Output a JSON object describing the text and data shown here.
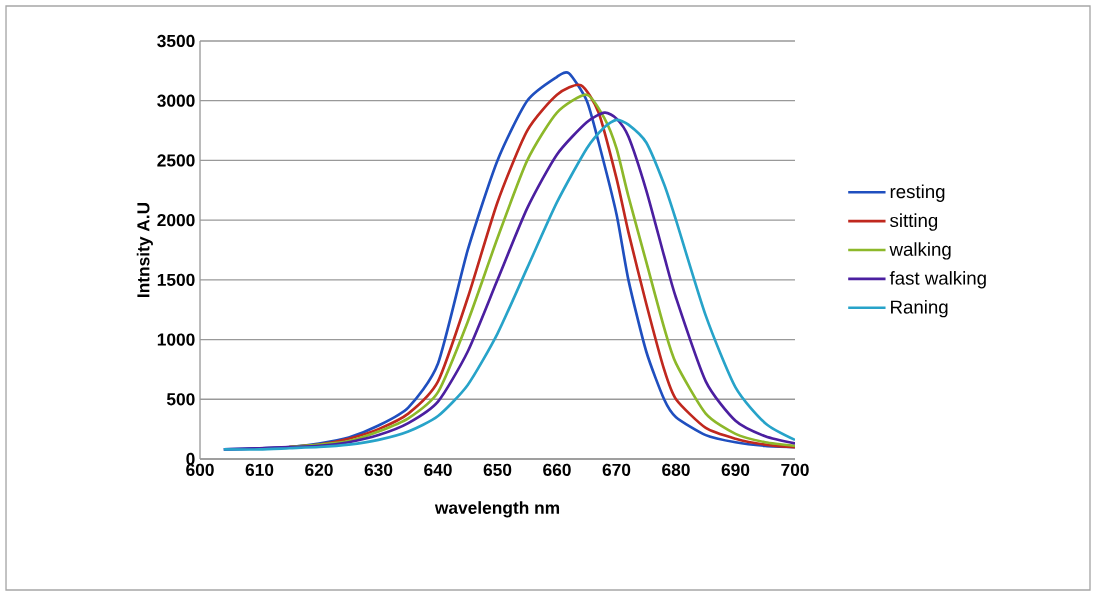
{
  "chart_data": {
    "type": "line",
    "xlabel": "wavelength nm",
    "ylabel": "Intnsity  A.U",
    "xlim": [
      600,
      700
    ],
    "xticks": [
      600,
      610,
      620,
      630,
      640,
      650,
      660,
      670,
      680,
      690,
      700
    ],
    "ylim": [
      0,
      3500
    ],
    "yticks": [
      0,
      500,
      1000,
      1500,
      2000,
      2500,
      3000,
      3500
    ],
    "grid": "y",
    "legend": "right",
    "marker": "none",
    "line_style": "solid",
    "series": [
      {
        "name": "resting",
        "color": "#1f4fbf",
        "x": [
          604,
          610,
          615,
          620,
          625,
          630,
          635,
          640,
          645,
          650,
          655,
          660,
          662,
          665,
          667,
          670,
          672,
          675,
          678,
          680,
          685,
          690,
          695,
          700
        ],
        "values": [
          80,
          90,
          100,
          130,
          180,
          280,
          430,
          800,
          1750,
          2500,
          3000,
          3200,
          3230,
          3000,
          2650,
          2050,
          1500,
          900,
          500,
          350,
          200,
          140,
          110,
          100
        ]
      },
      {
        "name": "sitting",
        "color": "#c0281e",
        "x": [
          615,
          620,
          625,
          630,
          635,
          640,
          645,
          650,
          655,
          660,
          664,
          667,
          670,
          672,
          675,
          678,
          680,
          685,
          690,
          695,
          700
        ],
        "values": [
          100,
          120,
          170,
          250,
          380,
          650,
          1350,
          2150,
          2750,
          3050,
          3130,
          2900,
          2350,
          1900,
          1300,
          750,
          500,
          260,
          170,
          120,
          100
        ]
      },
      {
        "name": "walking",
        "color": "#8db82a",
        "x": [
          615,
          620,
          625,
          630,
          635,
          640,
          645,
          650,
          655,
          660,
          665,
          668,
          670,
          672,
          675,
          678,
          680,
          685,
          690,
          695,
          700
        ],
        "values": [
          100,
          120,
          150,
          230,
          340,
          560,
          1150,
          1850,
          2500,
          2900,
          3050,
          2850,
          2600,
          2200,
          1650,
          1100,
          800,
          380,
          210,
          140,
          110
        ]
      },
      {
        "name": "fast walking",
        "color": "#4b1fa0",
        "x": [
          604,
          610,
          615,
          620,
          625,
          630,
          635,
          640,
          645,
          650,
          655,
          660,
          665,
          668,
          670,
          672,
          675,
          678,
          680,
          685,
          690,
          695,
          700
        ],
        "values": [
          80,
          90,
          100,
          110,
          140,
          200,
          300,
          480,
          900,
          1500,
          2100,
          2550,
          2820,
          2900,
          2850,
          2700,
          2250,
          1700,
          1350,
          650,
          320,
          190,
          130
        ]
      },
      {
        "name": "Raning",
        "color": "#27a3c9",
        "x": [
          604,
          610,
          615,
          620,
          625,
          630,
          635,
          640,
          645,
          650,
          655,
          660,
          665,
          668,
          670,
          672,
          675,
          678,
          680,
          685,
          690,
          695,
          700
        ],
        "values": [
          80,
          80,
          90,
          100,
          120,
          160,
          230,
          360,
          620,
          1050,
          1600,
          2150,
          2600,
          2780,
          2840,
          2800,
          2650,
          2300,
          2000,
          1200,
          600,
          300,
          160
        ]
      }
    ]
  }
}
